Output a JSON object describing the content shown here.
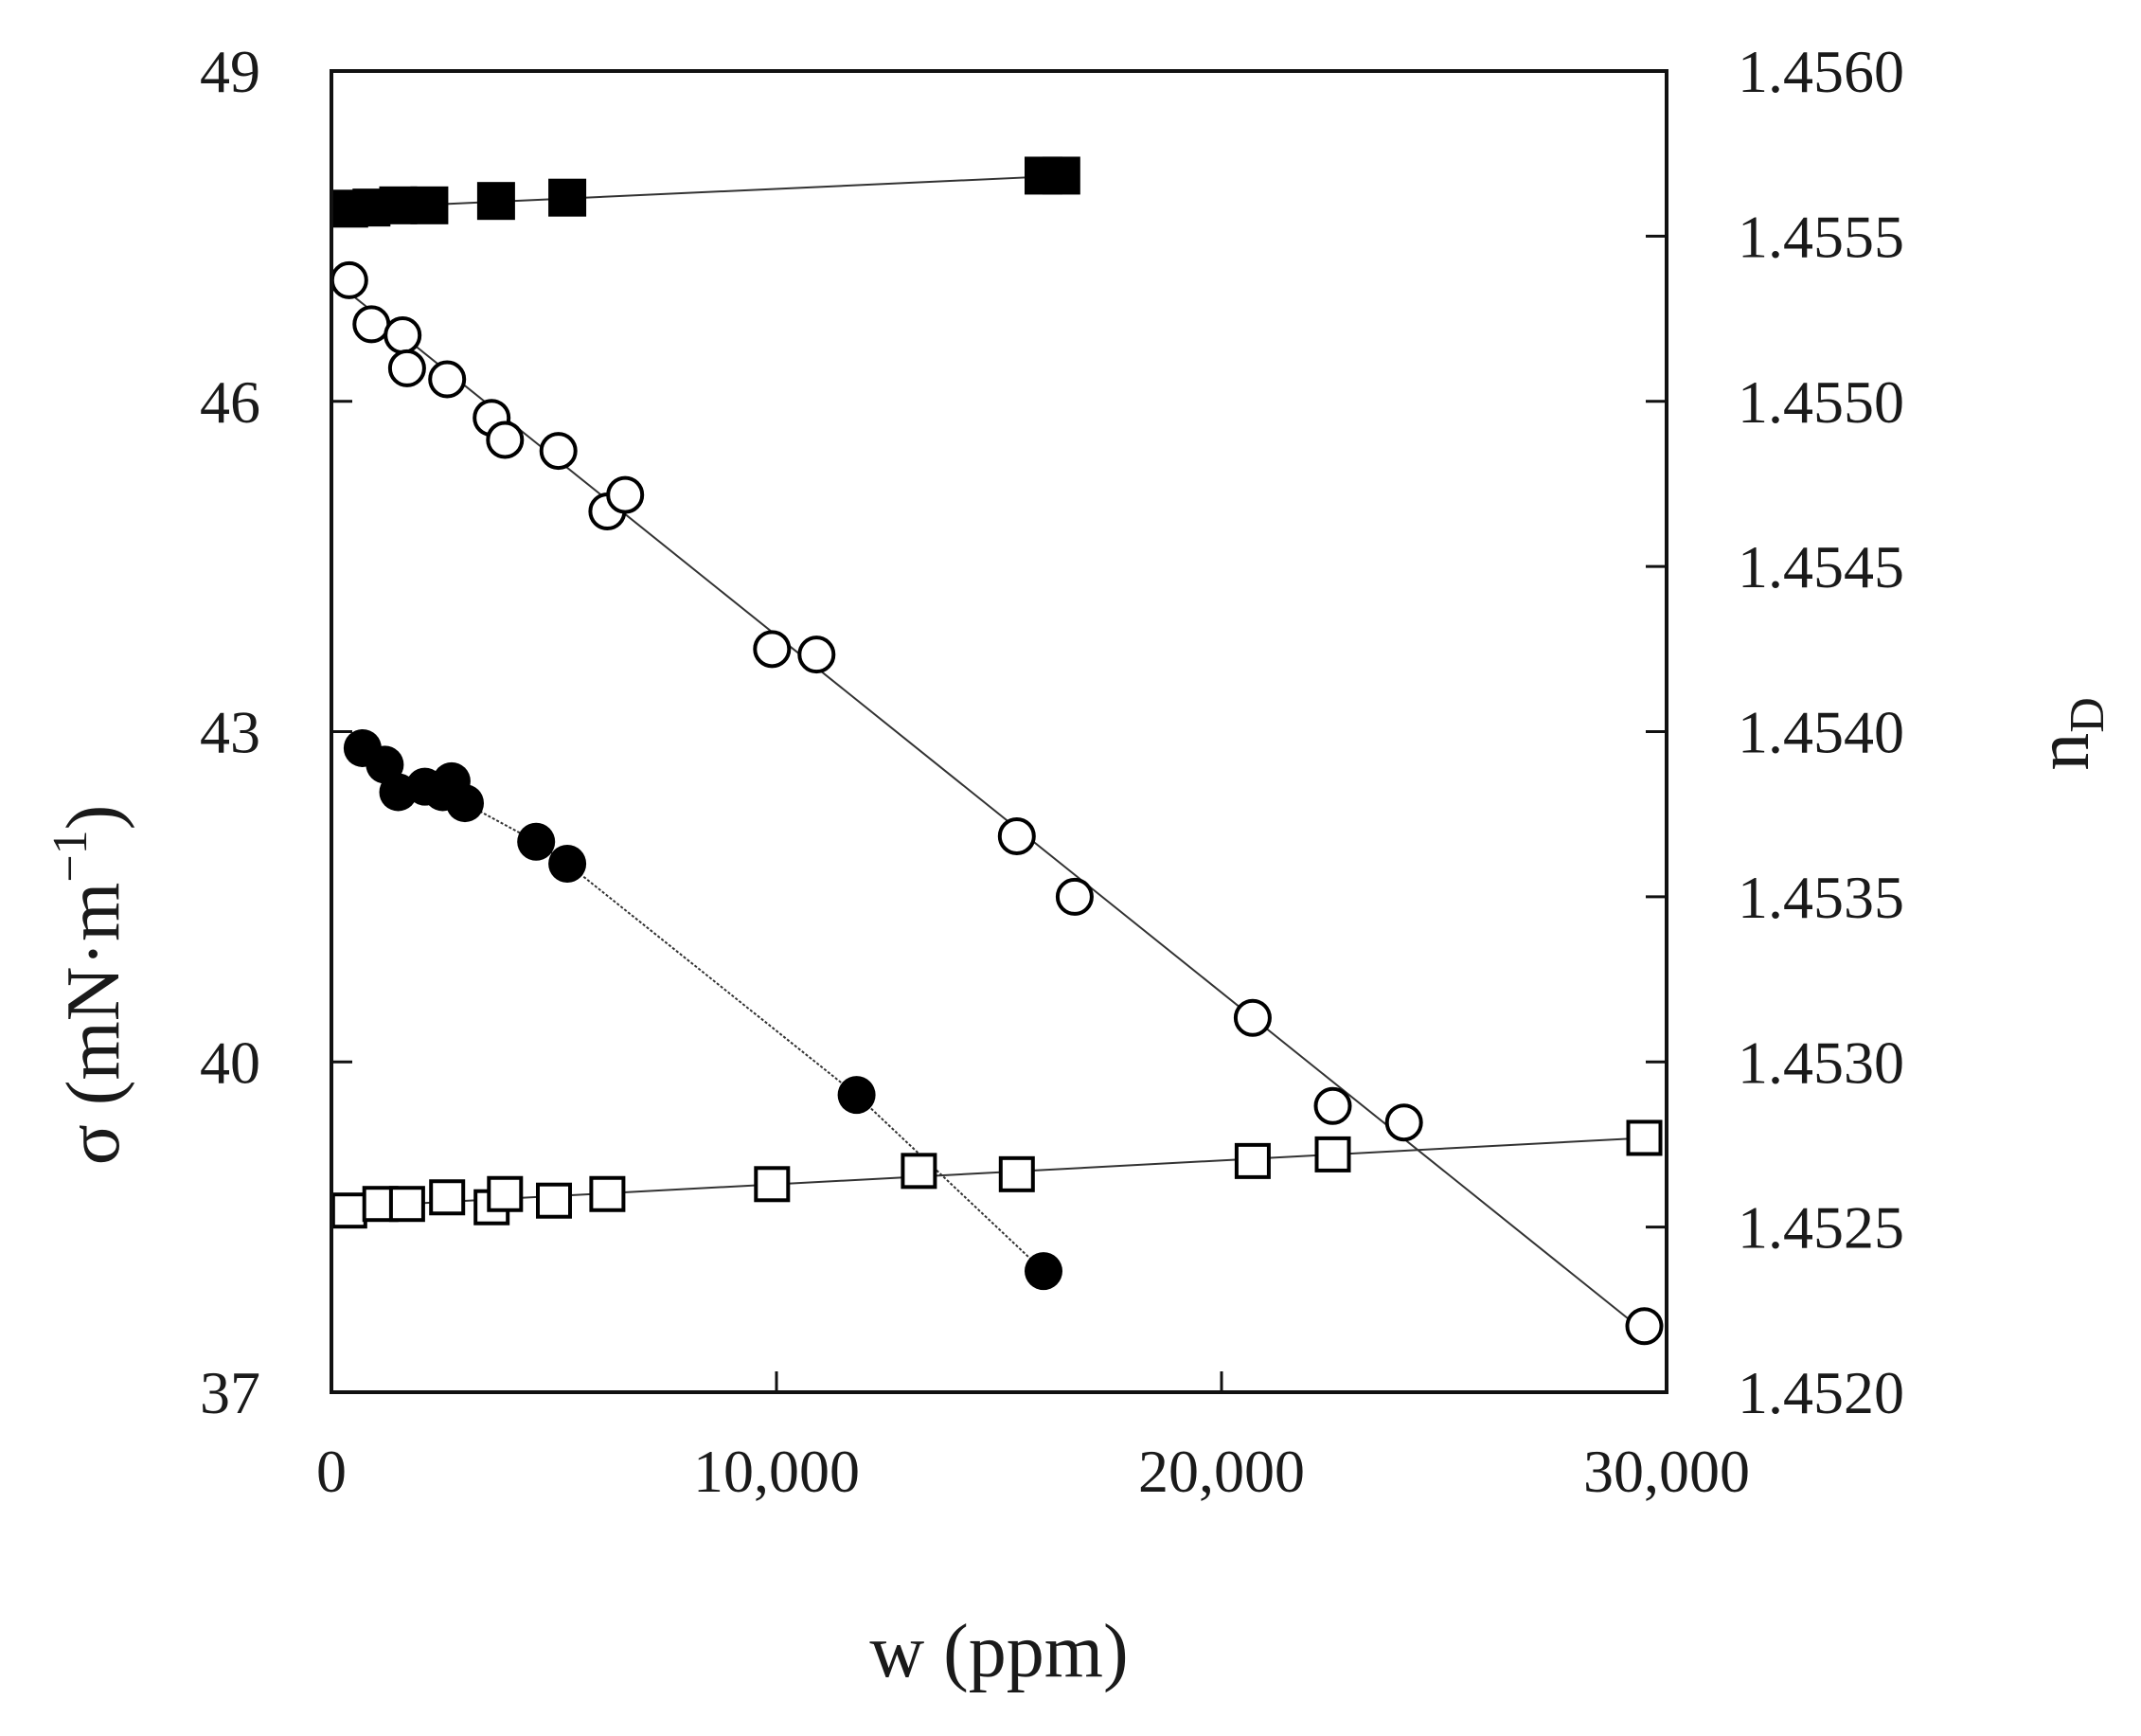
{
  "chart_data": {
    "type": "scatter",
    "title": "",
    "xlabel": "w (ppm)",
    "ylabel_left": {
      "text": "σ (mN·m",
      "superscript": "−1",
      "close": ")"
    },
    "ylabel_right": {
      "base": "n",
      "subscript": "D"
    },
    "xlim": [
      0,
      30000
    ],
    "ylim_left": [
      37,
      49
    ],
    "ylim_right": [
      1.452,
      1.456
    ],
    "x_ticks": [
      0,
      10000,
      20000,
      30000
    ],
    "x_tick_labels": [
      "0",
      "10,000",
      "20,000",
      "30,000"
    ],
    "y_left_ticks": [
      37,
      40,
      43,
      46,
      49
    ],
    "y_left_tick_labels": [
      "37",
      "40",
      "43",
      "46",
      "49"
    ],
    "y_right_ticks": [
      1.452,
      1.4525,
      1.453,
      1.4535,
      1.454,
      1.4545,
      1.455,
      1.4555,
      1.456
    ],
    "y_right_tick_labels": [
      "1.4520",
      "1.4525",
      "1.4530",
      "1.4535",
      "1.4540",
      "1.4545",
      "1.4550",
      "1.4555",
      "1.4560"
    ],
    "series": [
      {
        "name": "sigma-series-A",
        "axis": "left",
        "marker": "filled-square",
        "fit": "line",
        "fit_x": [
          300,
          16500
        ],
        "fit_y": [
          47.75,
          48.05
        ],
        "x": [
          400,
          900,
          1500,
          2200,
          3700,
          5300,
          16000,
          16400
        ],
        "y": [
          47.75,
          47.76,
          47.78,
          47.78,
          47.82,
          47.85,
          48.05,
          48.05
        ]
      },
      {
        "name": "sigma-series-B",
        "axis": "left",
        "marker": "open-circle",
        "fit": "line",
        "fit_x": [
          200,
          29500
        ],
        "fit_y": [
          47.05,
          37.55
        ],
        "x": [
          400,
          900,
          1600,
          1700,
          2600,
          3600,
          3900,
          5100,
          6200,
          6600,
          9900,
          10900,
          15400,
          16700,
          20700,
          22500,
          24100,
          29500
        ],
        "y": [
          47.1,
          46.7,
          46.6,
          46.3,
          46.2,
          45.85,
          45.65,
          45.55,
          45.0,
          45.15,
          43.75,
          43.7,
          42.05,
          41.5,
          40.4,
          39.6,
          39.45,
          37.6
        ]
      },
      {
        "name": "sigma-series-C",
        "axis": "left",
        "marker": "filled-circle",
        "fit": "curve",
        "x": [
          700,
          1200,
          1500,
          2100,
          2500,
          2700,
          3000,
          4600,
          5300,
          11800,
          16000
        ],
        "y": [
          42.85,
          42.7,
          42.45,
          42.5,
          42.45,
          42.55,
          42.35,
          42.0,
          41.8,
          39.7,
          38.1
        ]
      },
      {
        "name": "nD-series-D",
        "axis": "right",
        "marker": "open-square",
        "fit": "line",
        "fit_x": [
          300,
          29500
        ],
        "fit_y": [
          1.45256,
          1.45277
        ],
        "x": [
          400,
          1100,
          1700,
          2600,
          3600,
          3900,
          5000,
          6200,
          9900,
          13200,
          15400,
          20700,
          22500,
          29500
        ],
        "y": [
          1.45255,
          1.45257,
          1.45257,
          1.45259,
          1.45256,
          1.4526,
          1.45258,
          1.4526,
          1.45263,
          1.45267,
          1.45266,
          1.4527,
          1.45272,
          1.45277
        ]
      }
    ]
  }
}
